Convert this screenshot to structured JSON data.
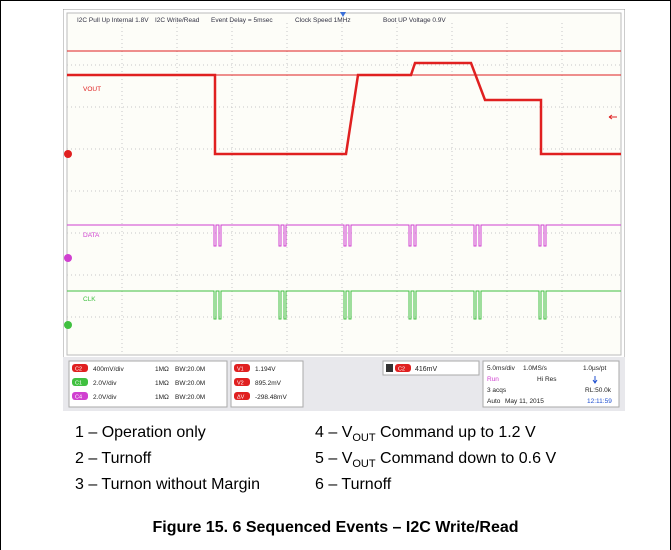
{
  "scope": {
    "header": [
      "I2C Pull Up Internal 1.8V",
      "I2C Write/Read",
      "Event Delay = 5msec",
      "Clock Speed 1MHz",
      "Boot UP Voltage 0.9V"
    ],
    "traces": [
      "VOUT",
      "DATA",
      "CLK"
    ],
    "channels": [
      {
        "badge": "C2",
        "scale": "400mV/div",
        "coupling": "1MΩ",
        "bw": "BW:20.0M"
      },
      {
        "badge": "C1",
        "scale": "2.0V/div",
        "coupling": "1MΩ",
        "bw": "BW:20.0M"
      },
      {
        "badge": "C4",
        "scale": "2.0V/div",
        "coupling": "1MΩ",
        "bw": "BW:20.0M"
      }
    ],
    "cursors": [
      {
        "badge": "V1",
        "value": "1.194V"
      },
      {
        "badge": "V2",
        "value": "895.2mV"
      },
      {
        "badge": "ΔV",
        "value": "-298.48mV"
      }
    ],
    "trigger": {
      "badge": "C2",
      "level": "416mV"
    },
    "timebase": {
      "div": "5.0ms/div",
      "rate": "1.0MS/s",
      "pt": "1.0µs/pt",
      "state": "Run",
      "mode": "Hi Res",
      "acqs": "3 acqs",
      "rl": "RL:50.0k",
      "trig": "Auto",
      "date": "May 11, 2015",
      "time": "12:11:59"
    }
  },
  "events": [
    {
      "text": "1 – Operation only"
    },
    {
      "text": "2 – Turnoff"
    },
    {
      "text": "3 – Turnon without Margin"
    },
    {
      "prefix": "4 – V",
      "sub": "OUT",
      "suffix": " Command up to 1.2 V"
    },
    {
      "prefix": "5 – V",
      "sub": "OUT",
      "suffix": " Command down to 0.6 V"
    },
    {
      "text": "6 – Turnoff"
    }
  ],
  "figure_caption": "Figure 15. 6 Sequenced Events – I2C Write/Read"
}
